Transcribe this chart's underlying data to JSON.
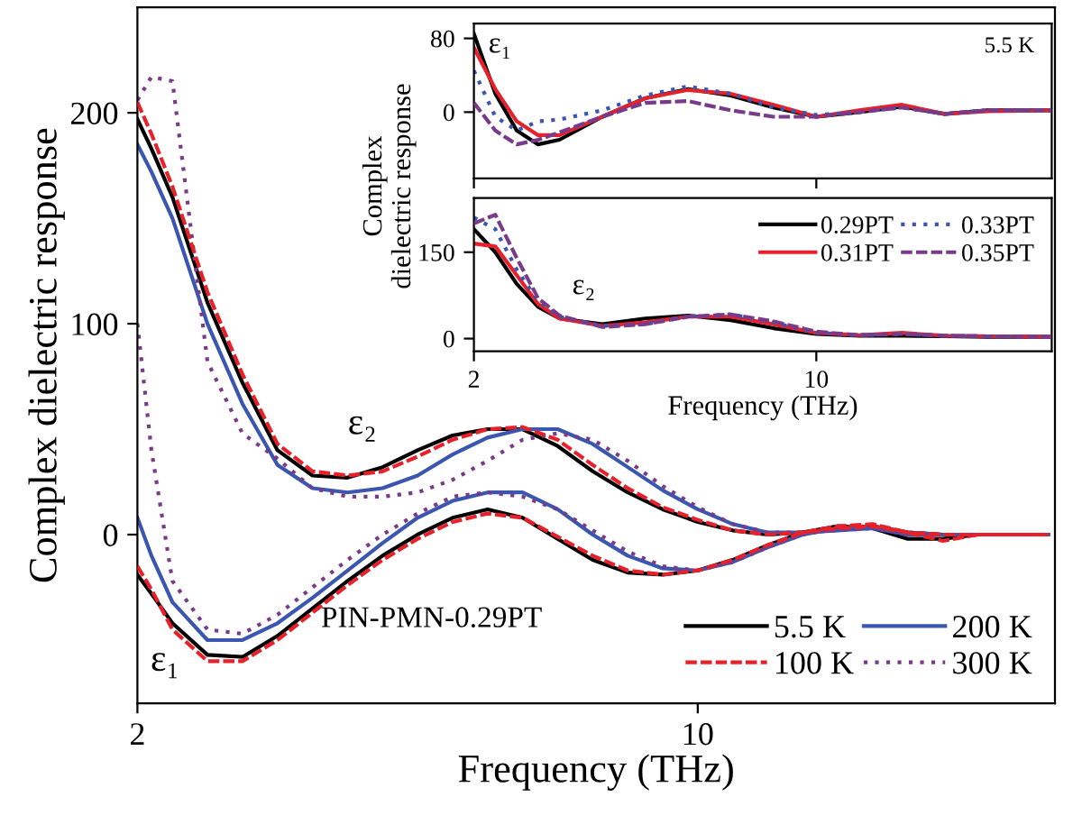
{
  "chart_data": [
    {
      "type": "line",
      "xlabel": "Frequency (THz)",
      "ylabel": "Complex dielectric response",
      "x": [
        2,
        2.2,
        2.5,
        3,
        3.5,
        4,
        4.5,
        5,
        5.5,
        6,
        6.5,
        7,
        7.5,
        8,
        8.5,
        9,
        9.5,
        10,
        10.5,
        11,
        11.5,
        12,
        12.5,
        13,
        13.5,
        14,
        15
      ],
      "xlim": [
        2,
        15.1
      ],
      "xticks": [
        2,
        10
      ],
      "ylim": [
        -80,
        250
      ],
      "yticks": [
        0,
        100,
        200
      ],
      "grid": false,
      "legend": "bottom right",
      "marker": "none",
      "series": [
        {
          "name": "5.5 K",
          "color": "#000000",
          "line_style": "solid",
          "values": [
            197,
            183,
            160,
            110,
            72,
            40,
            28,
            27,
            32,
            40,
            47,
            50,
            50,
            42,
            30,
            20,
            12,
            6,
            2,
            0,
            1,
            3,
            4,
            1,
            0,
            0,
            0
          ]
        },
        {
          "name": "100 K",
          "color": "#e8202a",
          "line_style": "dashed",
          "values": [
            205,
            190,
            165,
            115,
            76,
            43,
            30,
            28,
            30,
            37,
            45,
            50,
            51,
            45,
            33,
            22,
            13,
            7,
            2,
            0,
            1,
            3,
            4,
            1,
            0,
            0,
            0
          ]
        },
        {
          "name": "200 K",
          "color": "#3a56b0",
          "line_style": "solid",
          "values": [
            185,
            172,
            150,
            100,
            62,
            33,
            22,
            20,
            22,
            28,
            38,
            46,
            50,
            50,
            43,
            32,
            21,
            12,
            5,
            1,
            1,
            2,
            3,
            1,
            0,
            0,
            0
          ]
        },
        {
          "name": "300 K",
          "color": "#7a3a8a",
          "line_style": "dotted",
          "values": [
            206,
            217,
            215,
            82,
            48,
            36,
            22,
            18,
            18,
            20,
            26,
            35,
            45,
            48,
            45,
            35,
            23,
            13,
            5,
            1,
            1,
            2,
            3,
            1,
            0,
            0,
            0
          ]
        },
        {
          "color": "#000000",
          "line_style": "solid",
          "values": [
            -19,
            -28,
            -42,
            -57,
            -58,
            -48,
            -35,
            -22,
            -10,
            0,
            8,
            12,
            8,
            -2,
            -12,
            -18,
            -19,
            -17,
            -12,
            -5,
            1,
            4,
            3,
            -2,
            -2,
            0,
            0
          ]
        },
        {
          "color": "#e8202a",
          "line_style": "dashed",
          "values": [
            -15,
            -26,
            -45,
            -60,
            -60,
            -50,
            -37,
            -24,
            -12,
            -2,
            6,
            10,
            8,
            -1,
            -10,
            -17,
            -19,
            -17,
            -12,
            -5,
            1,
            4,
            5,
            1,
            -3,
            0,
            0
          ]
        },
        {
          "color": "#3a56b0",
          "line_style": "solid",
          "values": [
            8,
            -10,
            -32,
            -50,
            -50,
            -42,
            -30,
            -17,
            -4,
            8,
            16,
            20,
            20,
            12,
            0,
            -10,
            -16,
            -17,
            -13,
            -6,
            0,
            3,
            3,
            0,
            0,
            0,
            0
          ]
        },
        {
          "color": "#7a3a8a",
          "line_style": "dotted",
          "values": [
            100,
            40,
            -22,
            -45,
            -47,
            -38,
            -25,
            -12,
            0,
            10,
            18,
            20,
            18,
            12,
            2,
            -8,
            -15,
            -17,
            -13,
            -6,
            0,
            3,
            3,
            0,
            0,
            0,
            0
          ]
        }
      ],
      "annotations": [
        "ε₂",
        "ε₁",
        "PIN-PMN-0.29PT"
      ]
    },
    {
      "type": "line",
      "ylabel": "Complex\ndielectric response",
      "x": [
        2,
        2.5,
        3,
        3.5,
        4,
        5,
        6,
        7,
        8,
        9,
        10,
        11,
        12,
        13,
        14,
        15.5
      ],
      "xlim": [
        2,
        15.5
      ],
      "xticks": [
        2,
        10
      ],
      "ylim": [
        -72,
        96
      ],
      "yticks": [
        0,
        80
      ],
      "grid": false,
      "tick_labels": "y",
      "marker": "none",
      "series": [
        {
          "color": "#000000",
          "line_style": "solid",
          "values": [
            85,
            20,
            -20,
            -35,
            -30,
            -5,
            15,
            25,
            18,
            5,
            -5,
            0,
            6,
            -2,
            2,
            2
          ]
        },
        {
          "color": "#e8202a",
          "line_style": "solid",
          "values": [
            70,
            25,
            -10,
            -25,
            -25,
            -5,
            15,
            24,
            20,
            8,
            -5,
            2,
            8,
            -2,
            1,
            2
          ]
        },
        {
          "color": "#3a56b0",
          "line_style": "dotted",
          "values": [
            45,
            -5,
            -20,
            -10,
            -8,
            2,
            18,
            28,
            20,
            5,
            -3,
            0,
            5,
            -2,
            2,
            2
          ]
        },
        {
          "color": "#7a3a8a",
          "line_style": "dashed",
          "values": [
            10,
            -20,
            -35,
            -30,
            -22,
            -5,
            10,
            12,
            2,
            -5,
            -5,
            0,
            5,
            -2,
            2,
            2
          ]
        }
      ],
      "annotations": [
        "ε₁",
        "5.5 K"
      ]
    },
    {
      "type": "line",
      "xlabel": "Frequency (THz)",
      "x": [
        2,
        2.5,
        3,
        3.5,
        4,
        5,
        6,
        7,
        8,
        9,
        10,
        11,
        12,
        13,
        14,
        15.5
      ],
      "xlim": [
        2,
        15.5
      ],
      "xticks": [
        2,
        10
      ],
      "ylim": [
        -22,
        244
      ],
      "yticks": [
        0,
        150
      ],
      "grid": false,
      "legend": "top right",
      "marker": "none",
      "series": [
        {
          "name": "0.29PT",
          "color": "#000000",
          "line_style": "solid",
          "values": [
            190,
            150,
            95,
            55,
            35,
            25,
            35,
            40,
            32,
            18,
            8,
            5,
            5,
            4,
            3,
            3
          ]
        },
        {
          "name": "0.31PT",
          "color": "#e8202a",
          "line_style": "solid",
          "values": [
            165,
            160,
            110,
            60,
            35,
            22,
            28,
            38,
            38,
            25,
            10,
            6,
            10,
            5,
            4,
            3
          ]
        },
        {
          "name": "0.33PT",
          "color": "#3a56b0",
          "line_style": "dotted",
          "values": [
            210,
            190,
            120,
            65,
            38,
            22,
            25,
            38,
            42,
            28,
            10,
            6,
            8,
            5,
            4,
            3
          ]
        },
        {
          "name": "0.35PT",
          "color": "#7a3a8a",
          "line_style": "dashed",
          "values": [
            200,
            215,
            140,
            70,
            40,
            20,
            25,
            38,
            42,
            30,
            12,
            6,
            8,
            5,
            4,
            3
          ]
        }
      ],
      "annotations": [
        "ε₂"
      ]
    }
  ]
}
